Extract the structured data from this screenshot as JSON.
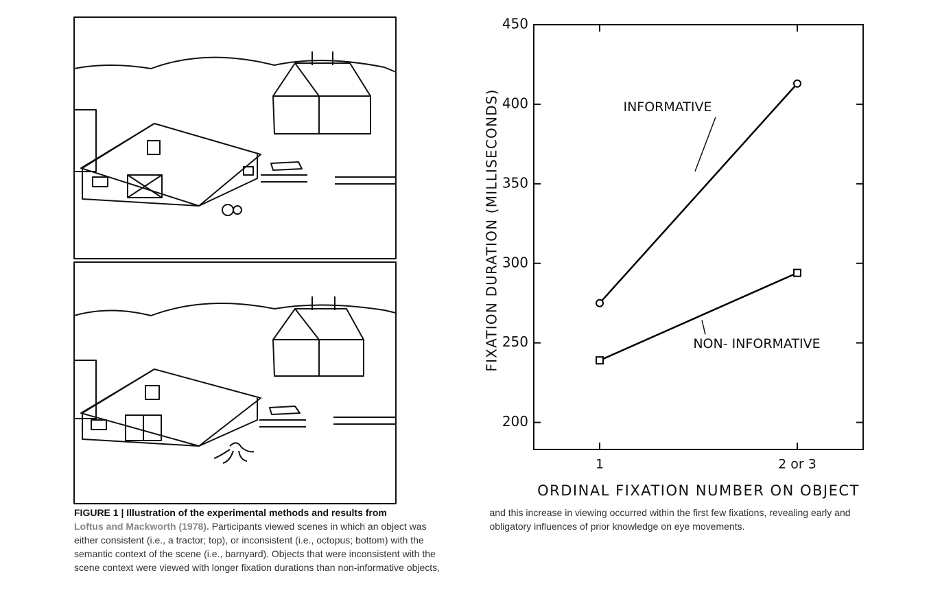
{
  "chart_data": {
    "type": "line",
    "ylabel": "FIXATION DURATION (MILLISECONDS)",
    "xlabel": "ORDINAL FIXATION NUMBER ON OBJECT",
    "categories": [
      "1",
      "2 or 3"
    ],
    "series": [
      {
        "name": "INFORMATIVE",
        "color": "#000000",
        "marker": "circle",
        "values": [
          275,
          413
        ]
      },
      {
        "name": "NON- INFORMATIVE",
        "color": "#000000",
        "marker": "square",
        "values": [
          239,
          294
        ]
      }
    ],
    "ylim": [
      183,
      450
    ],
    "yticks": [
      200,
      250,
      300,
      350,
      400,
      450
    ],
    "grid": false
  },
  "caption": {
    "label": "FIGURE 1 | Illustration of the experimental methods and results from",
    "citation": "Loftus and Mackworth (1978).",
    "body": "Participants viewed scenes in which an object was either consistent (i.e., a tractor; top), or inconsistent (i.e., octopus; bottom) with the semantic context of the scene (i.e., barnyard). Objects that were inconsistent with the scene context were viewed with longer fixation durations than non-informative objects, and this increase in viewing occurred within the first few fixations, revealing early and obligatory influences of prior knowledge on eye movements."
  }
}
